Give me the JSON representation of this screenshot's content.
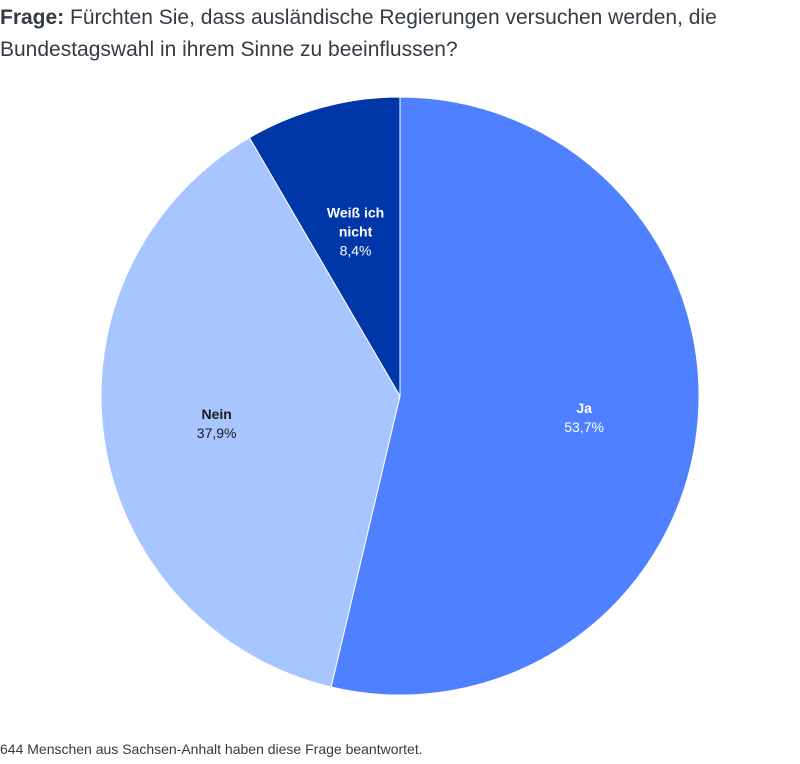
{
  "question": {
    "label": "Frage:",
    "text": "Fürchten Sie, dass ausländische Regierungen versuchen werden, die Bundestagswahl in ihrem Sinne zu beeinflussen?"
  },
  "chart_data": {
    "type": "pie",
    "slices": [
      {
        "name": "Ja",
        "name_lines": [
          "Ja"
        ],
        "value": 53.7,
        "label": "53,7%",
        "color": "#4f80ff",
        "text_color": "#ffffff"
      },
      {
        "name": "Nein",
        "name_lines": [
          "Nein"
        ],
        "value": 37.9,
        "label": "37,9%",
        "color": "#a7c6ff",
        "text_color": "#1a1a1a"
      },
      {
        "name": "Weiß ich nicht",
        "name_lines": [
          "Weiß ich",
          "nicht"
        ],
        "value": 8.4,
        "label": "8,4%",
        "color": "#0037a8",
        "text_color": "#ffffff"
      }
    ],
    "start_angle_deg": 0,
    "direction": "clockwise"
  },
  "footnote": "644 Menschen aus Sachsen-Anhalt haben diese Frage beantwortet."
}
